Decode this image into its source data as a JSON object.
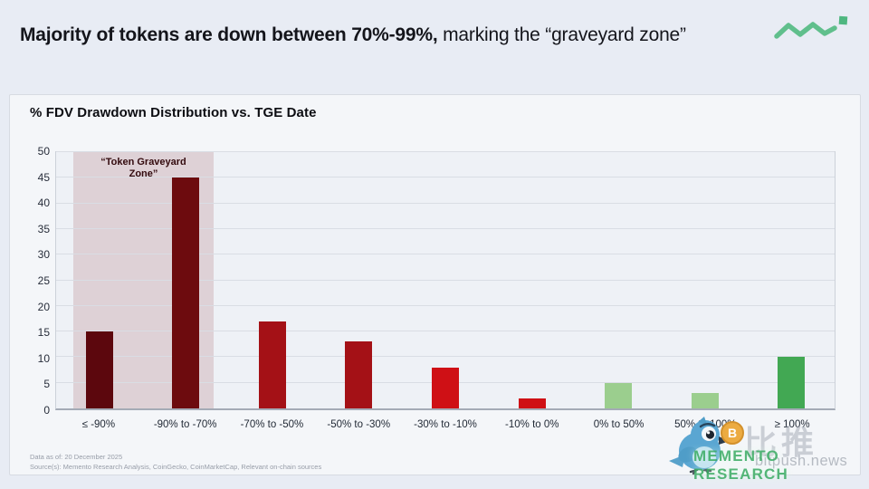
{
  "header": {
    "title_bold": "Majority of tokens are down between 70%-99%,",
    "title_regular": " marking the “graveyard zone”"
  },
  "chart": {
    "title": "% FDV Drawdown Distribution vs. TGE Date",
    "footnote_line1": "Data as of: 20 December 2025",
    "footnote_line2": "Source(s): Memento Research Analysis, CoinGecko, CoinMarketCap, Relevant on-chain sources"
  },
  "chart_data": {
    "type": "bar",
    "title": "% FDV Drawdown Distribution vs. TGE Date",
    "categories": [
      "≤ -90%",
      "-90% to -70%",
      "-70% to -50%",
      "-50% to -30%",
      "-30% to -10%",
      "-10% to 0%",
      "0% to 50%",
      "50% to 100%",
      "≥ 100%"
    ],
    "values": [
      15,
      45,
      17,
      13,
      8,
      2,
      5,
      3,
      10
    ],
    "bar_colors": [
      "#5c070d",
      "#6d0b0e",
      "#a41116",
      "#a41116",
      "#cf1015",
      "#cf1015",
      "#9bce8e",
      "#9bce8e",
      "#42a853"
    ],
    "xlabel": "",
    "ylabel": "",
    "ylim": [
      0,
      50
    ],
    "ytick_step": 5,
    "grid": true,
    "legend": false,
    "annotation": {
      "label": "“Token Graveyard Zone”",
      "zone_fill": "rgba(170,95,99,0.22)",
      "covers_categories": [
        "≤ -90%",
        "-90% to -70%"
      ],
      "covers_indices": [
        0,
        1
      ]
    }
  },
  "icons": {
    "header_logo": "green-zigzag-trend-icon",
    "watermark_bird": "bitpush-bird-icon",
    "watermark_coin_letter": "B"
  },
  "watermark": {
    "brand_cn": "比推",
    "brand_domain": "bitpush.news",
    "research_brand": "MEMENTO RESEARCH"
  },
  "colors": {
    "page_bg": "#e8ecf4",
    "card_bg": "#f4f6f9",
    "plot_bg": "#eef1f6",
    "accent_green": "#3fae67"
  }
}
